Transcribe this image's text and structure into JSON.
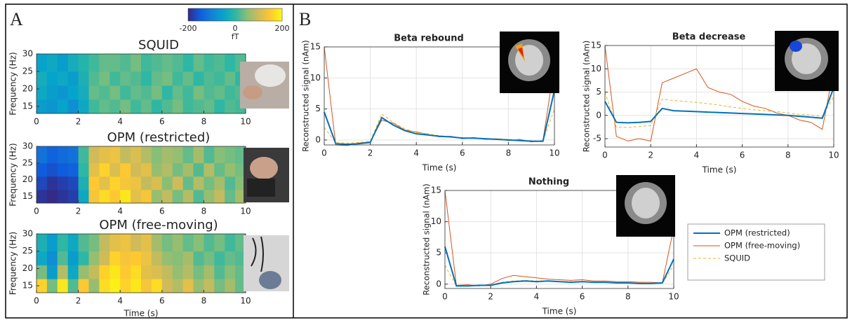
{
  "panels": [
    {
      "label": "A"
    },
    {
      "label": "B"
    }
  ],
  "colorbar": {
    "clim": [
      -200,
      200
    ],
    "ticks": [
      -200,
      0,
      200
    ],
    "label": "fT",
    "colormap": [
      "#352a87",
      "#0f5cdd",
      "#1481d6",
      "#06a4ca",
      "#2eb7a4",
      "#87bf77",
      "#d1bb59",
      "#fec832",
      "#f9fb0e"
    ]
  },
  "chart_data": [
    {
      "type": "heatmap",
      "title": "SQUID",
      "ylabel": "Frequency (Hz)",
      "x_edges": [
        0,
        0.5,
        1,
        1.5,
        2,
        2.5,
        3,
        3.5,
        4,
        4.5,
        5,
        5.5,
        6,
        6.5,
        7,
        7.5,
        8,
        8.5,
        9,
        9.5,
        10
      ],
      "y_edges": [
        13,
        17,
        21,
        25,
        30
      ],
      "values": [
        [
          -60,
          -70,
          -50,
          -80,
          -40,
          10,
          30,
          20,
          40,
          10,
          30,
          0,
          20,
          40,
          10,
          20,
          30,
          0,
          20,
          10
        ],
        [
          -40,
          -60,
          -70,
          -50,
          -30,
          30,
          20,
          40,
          10,
          30,
          20,
          40,
          0,
          30,
          10,
          40,
          20,
          30,
          10,
          20
        ],
        [
          -30,
          -50,
          -40,
          -60,
          -20,
          20,
          40,
          10,
          30,
          20,
          0,
          30,
          40,
          10,
          30,
          0,
          20,
          10,
          30,
          0
        ],
        [
          -50,
          -40,
          -60,
          -30,
          -10,
          10,
          30,
          30,
          20,
          40,
          10,
          20,
          30,
          20,
          0,
          30,
          10,
          20,
          0,
          20
        ]
      ],
      "xlim": [
        0,
        10
      ],
      "xticks": [
        0,
        2,
        4,
        6,
        8,
        10
      ],
      "ylim": [
        13,
        30
      ],
      "yticks": [
        15,
        20,
        25,
        30
      ]
    },
    {
      "type": "heatmap",
      "title": "OPM (restricted)",
      "ylabel": "Frequency (Hz)",
      "x_edges": [
        0,
        0.5,
        1,
        1.5,
        2,
        2.5,
        3,
        3.5,
        4,
        4.5,
        5,
        5.5,
        6,
        6.5,
        7,
        7.5,
        8,
        8.5,
        9,
        9.5,
        10
      ],
      "y_edges": [
        13,
        17,
        21,
        25,
        30
      ],
      "values": [
        [
          -190,
          -200,
          -190,
          -180,
          -40,
          140,
          170,
          150,
          180,
          120,
          140,
          60,
          90,
          40,
          80,
          20,
          60,
          90,
          30,
          70
        ],
        [
          -170,
          -190,
          -180,
          -170,
          -20,
          150,
          120,
          160,
          140,
          130,
          90,
          110,
          50,
          100,
          30,
          80,
          40,
          70,
          20,
          50
        ],
        [
          -150,
          -160,
          -150,
          -140,
          0,
          120,
          160,
          110,
          150,
          100,
          120,
          60,
          80,
          40,
          70,
          20,
          80,
          30,
          60,
          40
        ],
        [
          -120,
          -140,
          -130,
          -120,
          10,
          100,
          120,
          130,
          90,
          110,
          80,
          50,
          70,
          60,
          30,
          70,
          20,
          50,
          40,
          30
        ]
      ],
      "xlim": [
        0,
        10
      ],
      "xticks": [
        0,
        2,
        4,
        6,
        8,
        10
      ],
      "ylim": [
        13,
        30
      ],
      "yticks": [
        15,
        20,
        25,
        30
      ]
    },
    {
      "type": "heatmap",
      "title": "OPM (free-moving)",
      "ylabel": "Frequency (Hz)",
      "xlabel": "Time (s)",
      "x_edges": [
        0,
        0.5,
        1,
        1.5,
        2,
        2.5,
        3,
        3.5,
        4,
        4.5,
        5,
        5.5,
        6,
        6.5,
        7,
        7.5,
        8,
        8.5,
        9,
        9.5,
        10
      ],
      "y_edges": [
        13,
        17,
        21,
        25,
        30
      ],
      "values": [
        [
          160,
          40,
          180,
          20,
          150,
          60,
          170,
          190,
          160,
          180,
          140,
          170,
          100,
          80,
          120,
          60,
          90,
          40,
          70,
          30
        ],
        [
          40,
          -60,
          80,
          -40,
          60,
          90,
          160,
          180,
          150,
          170,
          120,
          110,
          90,
          60,
          80,
          40,
          70,
          20,
          50,
          30
        ],
        [
          -40,
          -80,
          20,
          -60,
          0,
          60,
          100,
          160,
          140,
          150,
          130,
          90,
          60,
          50,
          70,
          20,
          40,
          10,
          30,
          20
        ],
        [
          -20,
          -60,
          0,
          -40,
          20,
          40,
          90,
          120,
          130,
          100,
          120,
          70,
          40,
          60,
          30,
          50,
          20,
          40,
          10,
          30
        ]
      ],
      "xlim": [
        0,
        10
      ],
      "xticks": [
        0,
        2,
        4,
        6,
        8,
        10
      ],
      "ylim": [
        13,
        30
      ],
      "yticks": [
        15,
        20,
        25,
        30
      ]
    },
    {
      "type": "line",
      "title": "Beta rebound",
      "xlabel": "Time (s)",
      "ylabel": "Reconstructed signal (nAm)",
      "grid": true,
      "x": [
        0,
        0.5,
        1,
        1.5,
        2,
        2.5,
        3,
        3.5,
        4,
        4.5,
        5,
        5.5,
        6,
        6.5,
        7,
        7.5,
        8,
        8.5,
        9,
        9.5,
        10
      ],
      "series": [
        {
          "color": "#d95319",
          "width": 1,
          "values": [
            15,
            -0.8,
            -0.9,
            -0.5,
            -0.3,
            3.2,
            2.7,
            1.6,
            1.3,
            0.9,
            0.5,
            0.6,
            0.2,
            0.4,
            0.1,
            0.2,
            -0.1,
            0.1,
            -0.3,
            -0.1,
            12
          ]
        },
        {
          "color": "#edb120",
          "width": 1,
          "dash": true,
          "values": [
            2,
            -0.4,
            -0.5,
            -0.4,
            -0.2,
            4.2,
            2.8,
            1.8,
            1.2,
            1.0,
            0.7,
            0.5,
            0.4,
            0.3,
            0.2,
            0.2,
            0.1,
            0.0,
            -0.1,
            -0.2,
            5
          ]
        },
        {
          "color": "#0072bd",
          "width": 2,
          "values": [
            4.5,
            -0.6,
            -0.7,
            -0.6,
            -0.4,
            3.6,
            2.4,
            1.5,
            1.0,
            0.8,
            0.6,
            0.5,
            0.3,
            0.3,
            0.2,
            0.1,
            0.0,
            -0.1,
            -0.2,
            -0.2,
            8
          ]
        }
      ],
      "xlim": [
        0,
        10
      ],
      "xticks": [
        0,
        2,
        4,
        6,
        8,
        10
      ],
      "ylim": [
        -0.8,
        15
      ],
      "yticks": [
        0,
        5,
        10,
        15
      ]
    },
    {
      "type": "line",
      "title": "Beta decrease",
      "xlabel": "Time (s)",
      "ylabel": "Reconstructed signal (nAm)",
      "grid": true,
      "x": [
        0,
        0.5,
        1,
        1.5,
        2,
        2.5,
        3,
        3.5,
        4,
        4.5,
        5,
        5.5,
        6,
        6.5,
        7,
        7.5,
        8,
        8.5,
        9,
        9.5,
        10
      ],
      "series": [
        {
          "color": "#d95319",
          "width": 1,
          "values": [
            15,
            -4.5,
            -5.5,
            -5,
            -5.5,
            7,
            8,
            9,
            10,
            6,
            5,
            4.5,
            3,
            2,
            1.5,
            0.5,
            0,
            -1,
            -1.5,
            -3,
            10
          ]
        },
        {
          "color": "#edb120",
          "width": 1,
          "dash": true,
          "values": [
            5,
            -2.5,
            -2.6,
            -2.4,
            -2.2,
            3.5,
            3.2,
            3.0,
            2.8,
            2.5,
            2.2,
            1.8,
            1.5,
            1.2,
            1,
            0.8,
            0.5,
            0.2,
            0.1,
            -0.2,
            4
          ]
        },
        {
          "color": "#0072bd",
          "width": 2,
          "values": [
            3,
            -1.5,
            -1.6,
            -1.5,
            -1.3,
            1.5,
            1.0,
            0.9,
            0.8,
            0.7,
            0.6,
            0.5,
            0.4,
            0.3,
            0.2,
            0.1,
            0,
            -0.2,
            -0.4,
            -0.6,
            6
          ]
        }
      ],
      "xlim": [
        0,
        10
      ],
      "xticks": [
        0,
        2,
        4,
        6,
        8,
        10
      ],
      "ylim": [
        -6.8,
        15
      ],
      "yticks": [
        -5,
        0,
        5,
        10,
        15
      ]
    },
    {
      "type": "line",
      "title": "Nothing",
      "xlabel": "Time (s)",
      "ylabel": "Reconstructed signal (nAm)",
      "grid": true,
      "x": [
        0,
        0.5,
        1,
        1.5,
        2,
        2.5,
        3,
        3.5,
        4,
        4.5,
        5,
        5.5,
        6,
        6.5,
        7,
        7.5,
        8,
        8.5,
        9,
        9.5,
        10
      ],
      "series": [
        {
          "name": "OPM (free-moving)",
          "color": "#d95319",
          "width": 1,
          "values": [
            15,
            -0.2,
            -0.1,
            -0.3,
            0,
            0.9,
            1.4,
            1.2,
            1.0,
            0.8,
            0.7,
            0.6,
            0.7,
            0.5,
            0.5,
            0.4,
            0.4,
            0.3,
            0.3,
            0.2,
            9
          ]
        },
        {
          "name": "SQUID",
          "color": "#edb120",
          "width": 1,
          "dash": true,
          "values": [
            3,
            -0.3,
            -0.2,
            -0.3,
            -0.1,
            0.3,
            0.5,
            0.6,
            0.5,
            0.5,
            0.4,
            0.4,
            0.4,
            0.3,
            0.3,
            0.3,
            0.2,
            0.2,
            0.1,
            0.1,
            3
          ]
        },
        {
          "name": "OPM (restricted)",
          "color": "#0072bd",
          "width": 2,
          "values": [
            6,
            -0.3,
            -0.3,
            -0.2,
            -0.2,
            0.2,
            0.4,
            0.5,
            0.4,
            0.5,
            0.4,
            0.3,
            0.4,
            0.3,
            0.3,
            0.2,
            0.2,
            0.1,
            0.1,
            0.2,
            4
          ]
        }
      ],
      "legend_order": [
        2,
        0,
        1
      ],
      "xlim": [
        0,
        10
      ],
      "xticks": [
        0,
        2,
        4,
        6,
        8,
        10
      ],
      "ylim": [
        -0.7,
        15
      ],
      "yticks": [
        0,
        5,
        10,
        15
      ]
    }
  ]
}
